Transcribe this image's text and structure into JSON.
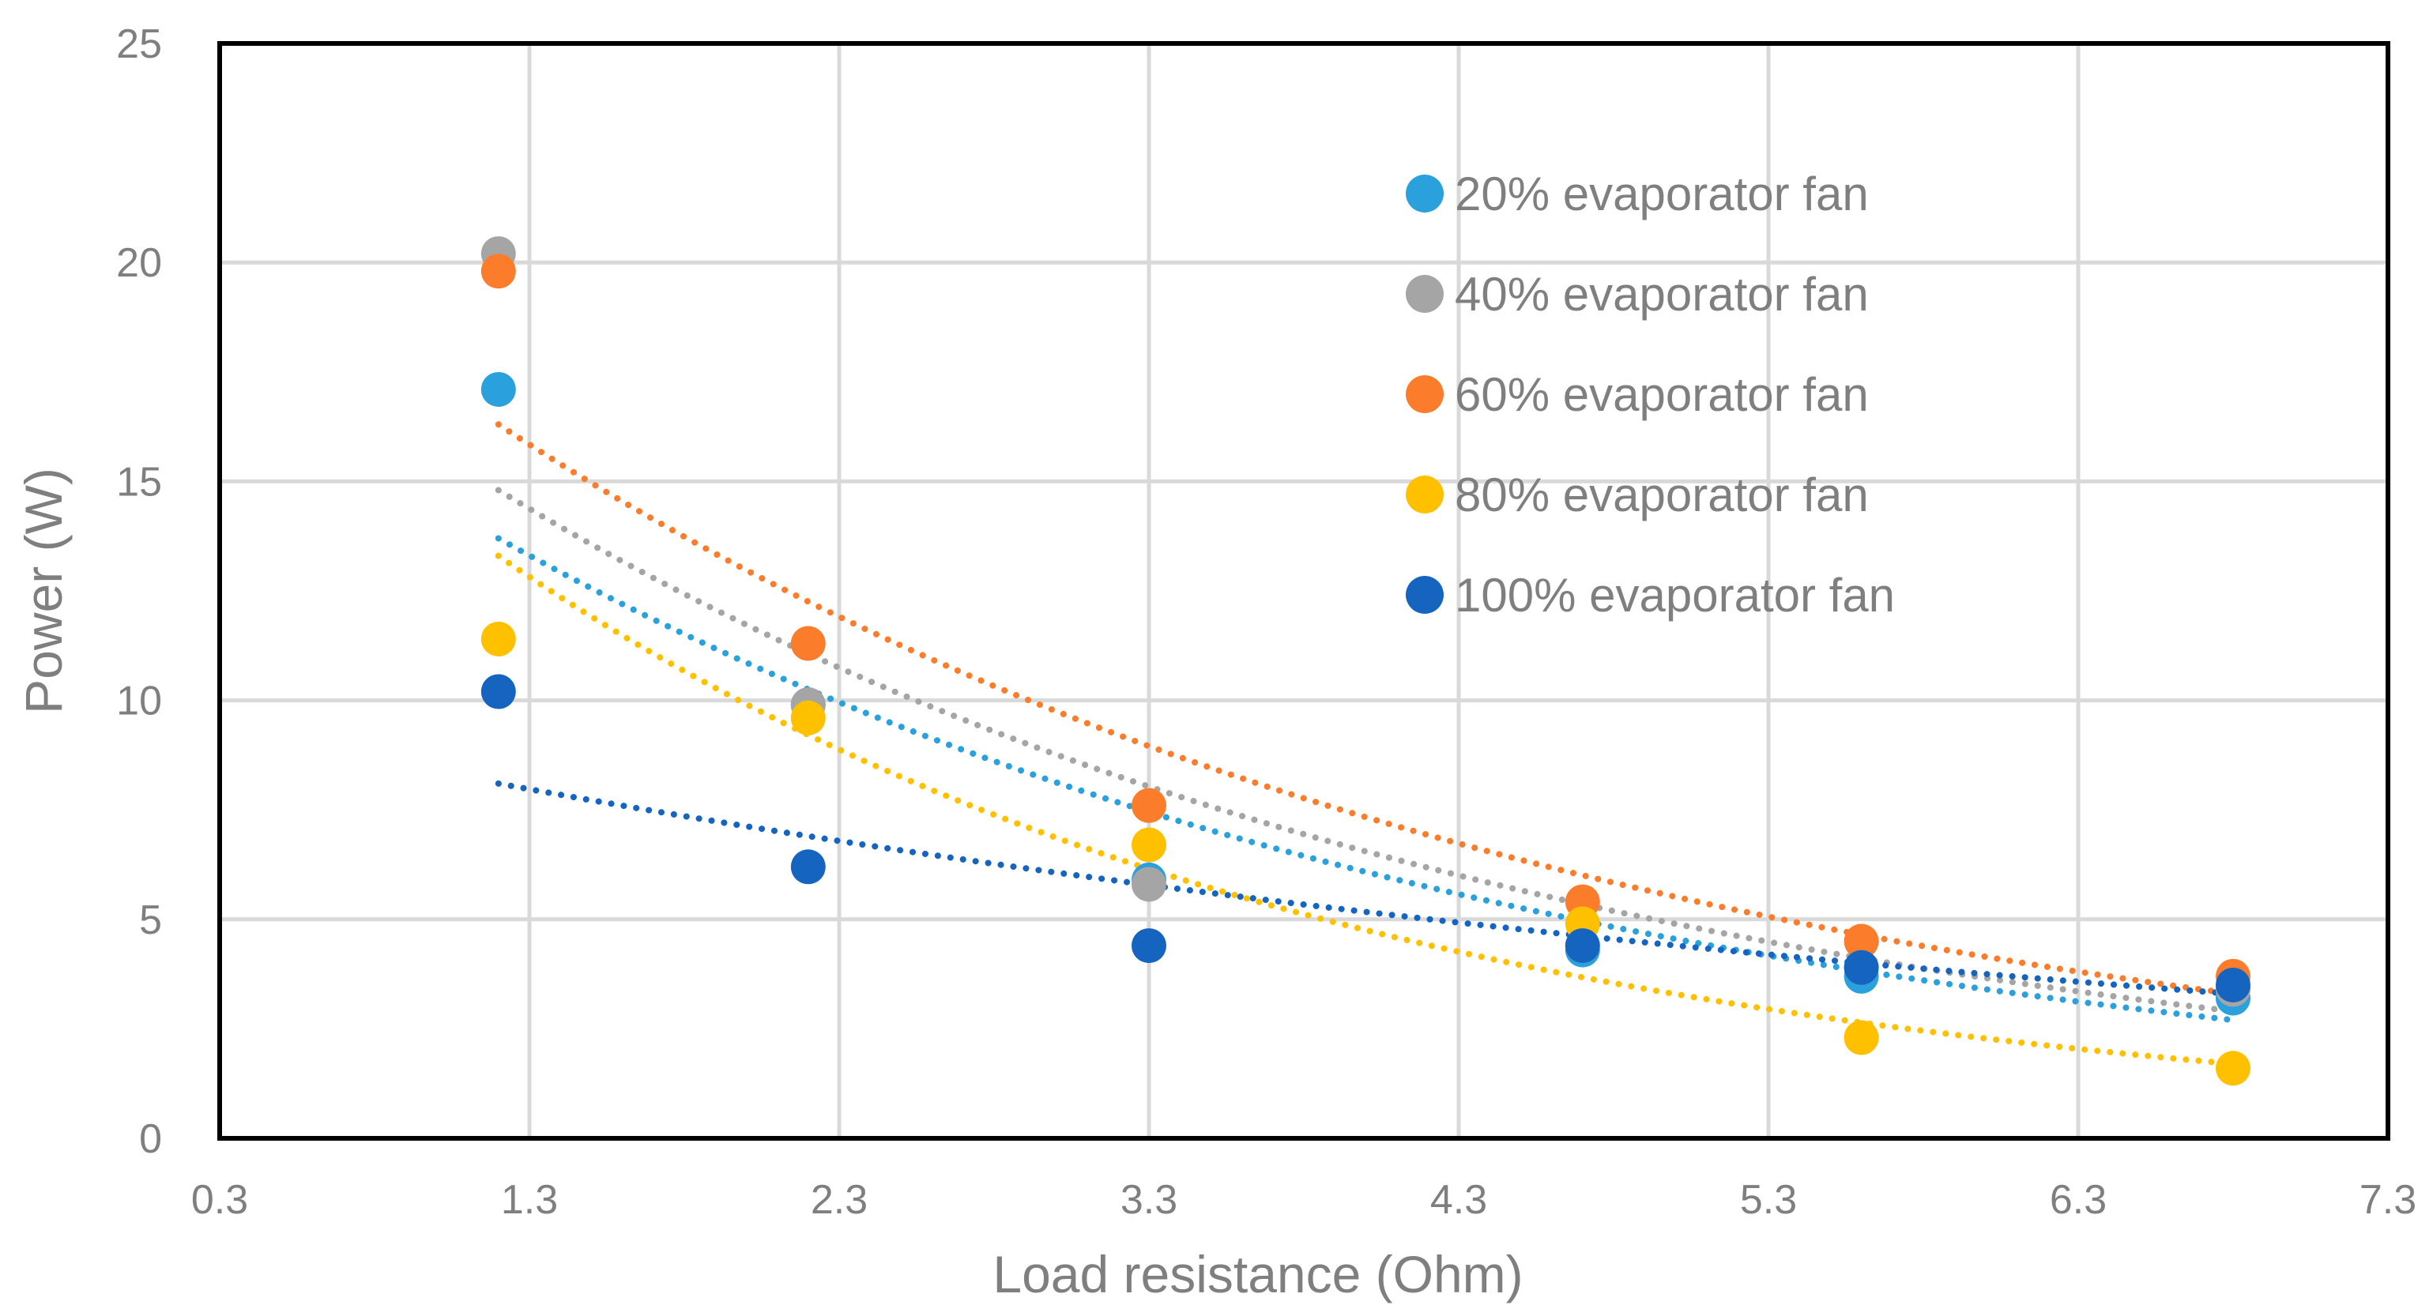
{
  "chart_data": {
    "type": "scatter",
    "title": "",
    "xlabel": "Load resistance (Ohm)",
    "ylabel": "Power (W)",
    "xlim": [
      0.3,
      7.3
    ],
    "ylim": [
      0,
      25
    ],
    "x_ticks": [
      "0.3",
      "1.3",
      "2.3",
      "3.3",
      "4.3",
      "5.3",
      "6.3",
      "7.3"
    ],
    "y_ticks": [
      "0",
      "5",
      "10",
      "15",
      "20",
      "25"
    ],
    "grid": true,
    "legend_position": "top-right",
    "trendline": "dotted exponential fit per series",
    "series": [
      {
        "name": "20% evaporator fan",
        "color": "#2aa0dc",
        "x": [
          1.2,
          2.2,
          3.3,
          4.7,
          5.6,
          6.8
        ],
        "y": [
          17.1,
          9.9,
          5.9,
          4.3,
          3.7,
          3.2
        ],
        "trend": {
          "x0": 1.2,
          "y0": 13.7,
          "x1": 6.8,
          "y1": 2.7
        }
      },
      {
        "name": "40% evaporator fan",
        "color": "#a5a5a5",
        "x": [
          1.2,
          2.2,
          3.3,
          4.7,
          5.6,
          6.8
        ],
        "y": [
          20.2,
          9.9,
          5.8,
          4.4,
          3.9,
          3.4
        ],
        "trend": {
          "x0": 1.2,
          "y0": 14.8,
          "x1": 6.8,
          "y1": 2.9
        }
      },
      {
        "name": "60% evaporator fan",
        "color": "#fb7d2b",
        "x": [
          1.2,
          2.2,
          3.3,
          4.7,
          5.6,
          6.8
        ],
        "y": [
          19.8,
          11.3,
          7.6,
          5.4,
          4.5,
          3.7
        ],
        "trend": {
          "x0": 1.2,
          "y0": 16.3,
          "x1": 6.8,
          "y1": 3.3
        }
      },
      {
        "name": "80% evaporator fan",
        "color": "#ffc000",
        "x": [
          1.2,
          2.2,
          3.3,
          4.7,
          5.6,
          6.8
        ],
        "y": [
          11.4,
          9.6,
          6.7,
          4.9,
          2.3,
          1.6
        ],
        "trend": {
          "x0": 1.2,
          "y0": 13.3,
          "x1": 6.8,
          "y1": 1.7
        }
      },
      {
        "name": "100% evaporator fan",
        "color": "#1565c0",
        "x": [
          1.2,
          2.2,
          3.3,
          4.7,
          5.6,
          6.8
        ],
        "y": [
          10.2,
          6.2,
          4.4,
          4.4,
          3.9,
          3.5
        ],
        "trend": {
          "x0": 1.2,
          "y0": 8.1,
          "x1": 6.8,
          "y1": 3.3
        }
      }
    ]
  }
}
